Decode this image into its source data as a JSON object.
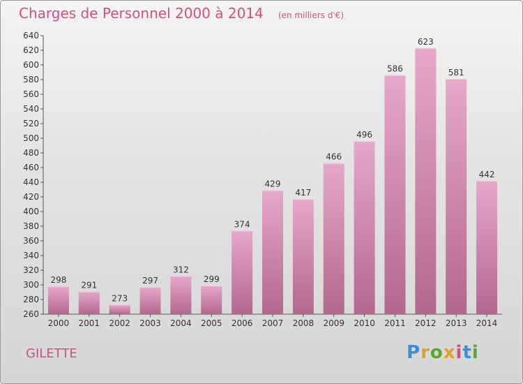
{
  "chart_data": {
    "type": "bar",
    "title": "Charges de Personnel 2000 à 2014",
    "unit": "(en milliers d'€)",
    "categories": [
      "2000",
      "2001",
      "2002",
      "2003",
      "2004",
      "2005",
      "2006",
      "2007",
      "2008",
      "2009",
      "2010",
      "2011",
      "2012",
      "2013",
      "2014"
    ],
    "values": [
      298,
      291,
      273,
      297,
      312,
      299,
      374,
      429,
      417,
      466,
      496,
      586,
      623,
      581,
      442
    ],
    "ylim": [
      260,
      640
    ],
    "ytick_step": 20,
    "grid": false,
    "colors": {
      "bar_top": "#e6a8cb",
      "bar_bottom": "#b3678f",
      "text": "#333333",
      "accent": "#d24f86"
    }
  },
  "footer": {
    "commune": "GILETTE",
    "logo_text": "Proxiti",
    "logo_letter_colors": [
      "#3a8fd6",
      "#e0a12a",
      "#5aa832",
      "#e0a12a",
      "#d24f86",
      "#3a8fd6",
      "#5aa832"
    ]
  }
}
